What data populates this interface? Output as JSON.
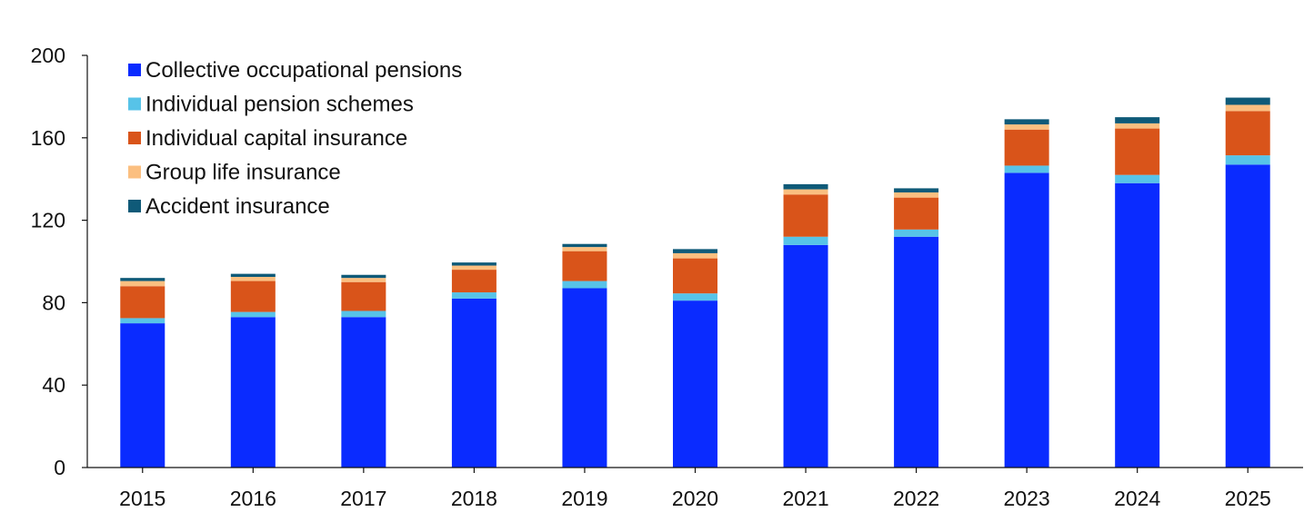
{
  "chart_data": {
    "type": "bar",
    "stacked": true,
    "title": "",
    "xlabel": "",
    "ylabel": "",
    "categories": [
      "2015",
      "2016",
      "2017",
      "2018",
      "2019",
      "2020",
      "2021",
      "2022",
      "2023",
      "2024",
      "2025"
    ],
    "yticks": [
      "0",
      "40",
      "80",
      "120",
      "160",
      "200"
    ],
    "ylim": [
      0,
      200
    ],
    "grid": false,
    "legend_position": "top-left",
    "series": [
      {
        "name": "Collective occupational pensions",
        "color": "#0a2bff",
        "values": [
          70,
          73,
          73,
          82,
          87,
          81,
          108,
          112,
          143,
          138,
          147
        ]
      },
      {
        "name": "Individual pension schemes",
        "color": "#57c3e8",
        "values": [
          2.5,
          2.5,
          3,
          3,
          3.5,
          3.5,
          4,
          3.5,
          3.5,
          4,
          4.5
        ]
      },
      {
        "name": "Individual capital insurance",
        "color": "#d9541a",
        "values": [
          15.5,
          15,
          14,
          11,
          14.5,
          17,
          20.5,
          15.5,
          17.5,
          22.5,
          21.5
        ]
      },
      {
        "name": "Group life insurance",
        "color": "#fbbf80",
        "values": [
          2.5,
          2,
          2,
          2,
          2,
          2.5,
          2.5,
          2.5,
          2.5,
          2.5,
          3
        ]
      },
      {
        "name": "Accident insurance",
        "color": "#0f5a78",
        "values": [
          1.5,
          1.5,
          1.5,
          1.5,
          1.5,
          2,
          2.5,
          2,
          2.5,
          3,
          3.5
        ]
      }
    ]
  }
}
